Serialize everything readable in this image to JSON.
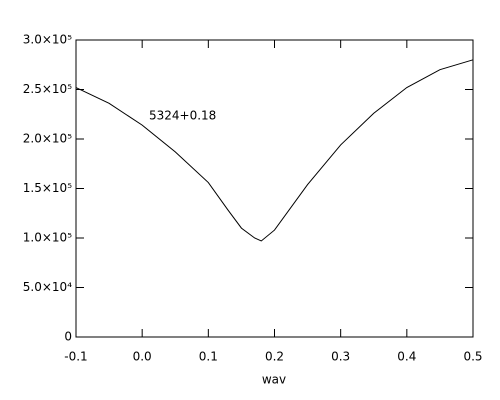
{
  "chart_data": {
    "type": "line",
    "xlabel": "wav",
    "annotation": "5324+0.18",
    "x": [
      -0.1,
      -0.05,
      0.0,
      0.05,
      0.1,
      0.13,
      0.15,
      0.17,
      0.18,
      0.2,
      0.25,
      0.3,
      0.35,
      0.4,
      0.45,
      0.5
    ],
    "series": [
      {
        "color": "#000000",
        "values": [
          252000,
          236000,
          214000,
          187000,
          156000,
          128000,
          110000,
          100000,
          97000,
          108000,
          154000,
          194000,
          226000,
          252000,
          270000,
          280000
        ]
      }
    ],
    "xlim": [
      -0.1,
      0.5
    ],
    "xticks": [
      -0.1,
      {
        "value": 0,
        "label": "0.0"
      },
      0.1,
      0.2,
      0.3,
      0.4,
      0.5
    ],
    "ylim": [
      0,
      300000
    ],
    "yticks": [
      0,
      {
        "value": 50000,
        "label": "5.0×10⁴"
      },
      {
        "value": 100000,
        "label": "1.0×10⁵"
      },
      {
        "value": 150000,
        "label": "1.5×10⁵"
      },
      {
        "value": 200000,
        "label": "2.0×10⁵"
      },
      {
        "value": 250000,
        "label": "2.5×10⁵"
      },
      {
        "value": 300000,
        "label": "3.0×10⁵"
      }
    ]
  }
}
